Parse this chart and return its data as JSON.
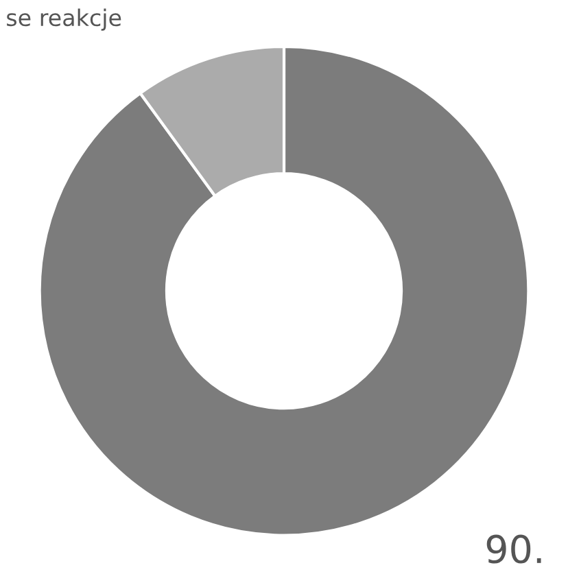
{
  "chart_data": {
    "type": "donut",
    "title": "se reakcje",
    "categories": [
      null,
      null
    ],
    "values": [
      90,
      10
    ],
    "colors": [
      "#7c7c7c",
      "#ababab"
    ],
    "value_labels": [
      "90.",
      null
    ]
  }
}
